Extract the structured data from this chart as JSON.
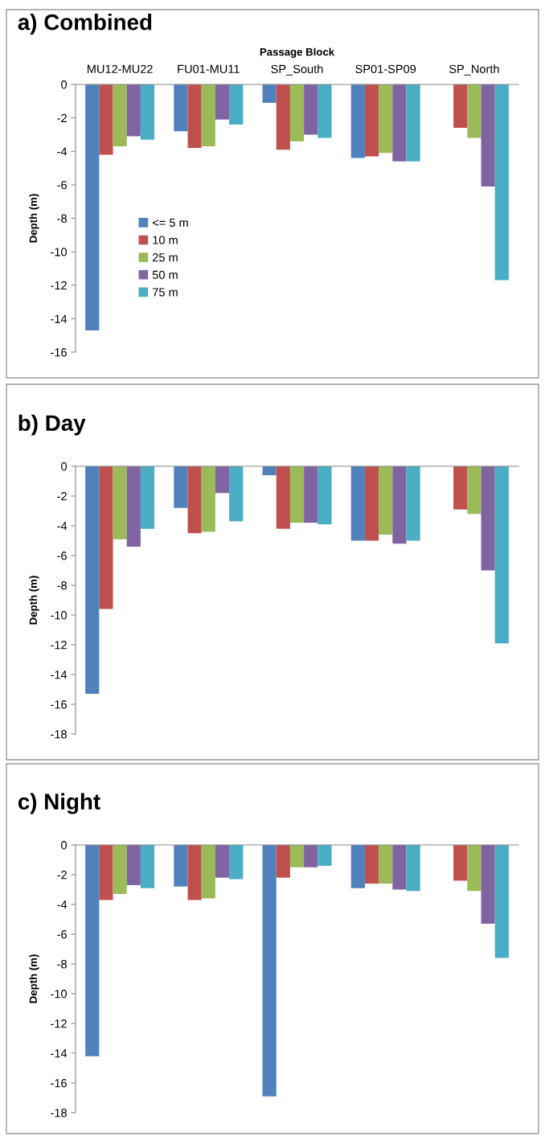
{
  "chart_data": [
    {
      "type": "bar",
      "title": "a) Combined",
      "xlabel": "Passage Block",
      "ylabel": "Depth (m)",
      "categories": [
        "MU12-MU22",
        "FU01-MU11",
        "SP_South",
        "SP01-SP09",
        "SP_North"
      ],
      "ylim": [
        -16,
        0
      ],
      "yticks": [
        -16,
        -14,
        -12,
        -10,
        -8,
        -6,
        -4,
        -2,
        0
      ],
      "grid": false,
      "legend": "left",
      "series": [
        {
          "name": "<= 5 m",
          "color": "#4f81bd",
          "values": [
            -14.7,
            -2.8,
            -1.1,
            -4.4,
            null
          ]
        },
        {
          "name": "10 m",
          "color": "#c0504d",
          "values": [
            -4.2,
            -3.8,
            -3.9,
            -4.3,
            -2.6
          ]
        },
        {
          "name": "25 m",
          "color": "#9bbb59",
          "values": [
            -3.7,
            -3.7,
            -3.4,
            -4.1,
            -3.2
          ]
        },
        {
          "name": "50 m",
          "color": "#8064a2",
          "values": [
            -3.1,
            -2.1,
            -3.0,
            -4.6,
            -6.1
          ]
        },
        {
          "name": "75 m",
          "color": "#4bacc6",
          "values": [
            -3.3,
            -2.4,
            -3.2,
            -4.6,
            -11.7
          ]
        }
      ]
    },
    {
      "type": "bar",
      "title": "b) Day",
      "ylabel": "Depth (m)",
      "categories": [
        null,
        null,
        null,
        null,
        null
      ],
      "tick_labels": "y",
      "ylim": [
        -18,
        0
      ],
      "yticks": [
        -18,
        -16,
        -14,
        -12,
        -10,
        -8,
        -6,
        -4,
        -2,
        0
      ],
      "grid": false,
      "series": [
        {
          "color": "#4f81bd",
          "values": [
            -15.3,
            -2.8,
            -0.6,
            -5.0,
            null
          ]
        },
        {
          "color": "#c0504d",
          "values": [
            -9.6,
            -4.5,
            -4.2,
            -5.0,
            -2.9
          ]
        },
        {
          "color": "#9bbb59",
          "values": [
            -4.9,
            -4.4,
            -3.8,
            -4.6,
            -3.2
          ]
        },
        {
          "color": "#8064a2",
          "values": [
            -5.4,
            -1.8,
            -3.8,
            -5.2,
            -7.0
          ]
        },
        {
          "color": "#4bacc6",
          "values": [
            -4.2,
            -3.7,
            -3.9,
            -5.0,
            -11.9
          ]
        }
      ]
    },
    {
      "type": "bar",
      "title": "c) Night",
      "ylabel": "Depth (m)",
      "categories": [
        null,
        null,
        null,
        null,
        null
      ],
      "tick_labels": "y",
      "ylim": [
        -18,
        0
      ],
      "yticks": [
        -18,
        -16,
        -14,
        -12,
        -10,
        -8,
        -6,
        -4,
        -2,
        0
      ],
      "grid": false,
      "series": [
        {
          "color": "#4f81bd",
          "values": [
            -14.2,
            -2.8,
            -16.9,
            -2.9,
            null
          ]
        },
        {
          "color": "#c0504d",
          "values": [
            -3.7,
            -3.7,
            -2.2,
            -2.6,
            -2.4
          ]
        },
        {
          "color": "#9bbb59",
          "values": [
            -3.3,
            -3.6,
            -1.5,
            -2.6,
            -3.1
          ]
        },
        {
          "color": "#8064a2",
          "values": [
            -2.7,
            -2.2,
            -1.5,
            -3.0,
            -5.3
          ]
        },
        {
          "color": "#4bacc6",
          "values": [
            -2.9,
            -2.3,
            -1.4,
            -3.1,
            -7.6
          ]
        }
      ]
    }
  ]
}
